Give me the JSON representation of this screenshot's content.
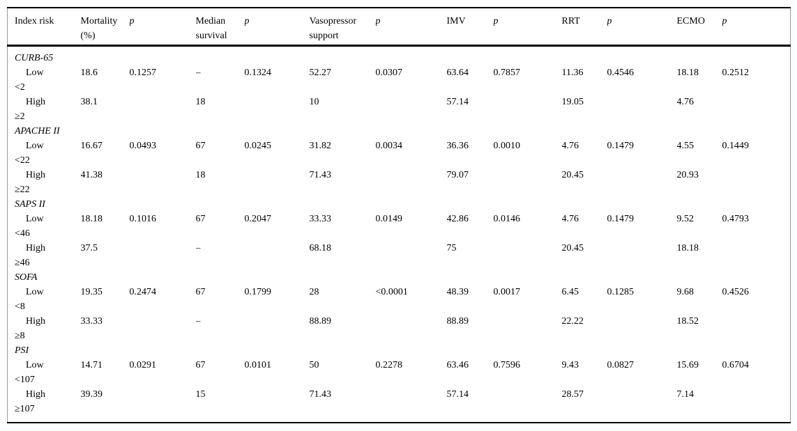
{
  "table": {
    "columns": [
      "Index risk",
      "Mortality (%)",
      "p",
      "Median survival",
      "p",
      "Vasopressor support",
      "p",
      "IMV",
      "p",
      "RRT",
      "p",
      "ECMO",
      "p"
    ],
    "groups": [
      {
        "name": "CURB-65",
        "rows": [
          {
            "label": "Low",
            "threshold": "<2",
            "values": [
              "18.6",
              "0.1257",
              "–",
              "0.1324",
              "52.27",
              "0.0307",
              "63.64",
              "0.7857",
              "11.36",
              "0.4546",
              "18.18",
              "0.2512"
            ]
          },
          {
            "label": "High",
            "threshold": "≥2",
            "values": [
              "38.1",
              "",
              "18",
              "",
              "10",
              "",
              "57.14",
              "",
              "19.05",
              "",
              "4.76",
              ""
            ]
          }
        ]
      },
      {
        "name": "APACHE II",
        "rows": [
          {
            "label": "Low",
            "threshold": "<22",
            "values": [
              "16.67",
              "0.0493",
              "67",
              "0.0245",
              "31.82",
              "0.0034",
              "36.36",
              "0.0010",
              "4.76",
              "0.1479",
              "4.55",
              "0.1449"
            ]
          },
          {
            "label": "High",
            "threshold": "≥22",
            "values": [
              "41.38",
              "",
              "18",
              "",
              "71.43",
              "",
              "79.07",
              "",
              "20.45",
              "",
              "20.93",
              ""
            ]
          }
        ]
      },
      {
        "name": "SAPS II",
        "rows": [
          {
            "label": "Low",
            "threshold": "<46",
            "values": [
              "18.18",
              "0.1016",
              "67",
              "0.2047",
              "33.33",
              "0.0149",
              "42.86",
              "0.0146",
              "4.76",
              "0.1479",
              "9.52",
              "0.4793"
            ]
          },
          {
            "label": "High",
            "threshold": "≥46",
            "values": [
              "37.5",
              "",
              "–",
              "",
              "68.18",
              "",
              "75",
              "",
              "20.45",
              "",
              "18.18",
              ""
            ]
          }
        ]
      },
      {
        "name": "SOFA",
        "rows": [
          {
            "label": "Low",
            "threshold": "<8",
            "values": [
              "19.35",
              "0.2474",
              "67",
              "0.1799",
              "28",
              "<0.0001",
              "48.39",
              "0.0017",
              "6.45",
              "0.1285",
              "9.68",
              "0.4526"
            ]
          },
          {
            "label": "High",
            "threshold": "≥8",
            "values": [
              "33.33",
              "",
              "–",
              "",
              "88.89",
              "",
              "88.89",
              "",
              "22.22",
              "",
              "18.52",
              ""
            ]
          }
        ]
      },
      {
        "name": "PSI",
        "rows": [
          {
            "label": "Low",
            "threshold": "<107",
            "values": [
              "14.71",
              "0.0291",
              "67",
              "0.0101",
              "50",
              "0.2278",
              "63.46",
              "0.7596",
              "9.43",
              "0.0827",
              "15.69",
              "0.6704"
            ]
          },
          {
            "label": "High",
            "threshold": "≥107",
            "values": [
              "39.39",
              "",
              "15",
              "",
              "71.43",
              "",
              "57.14",
              "",
              "28.57",
              "",
              "7.14",
              ""
            ]
          }
        ]
      }
    ]
  }
}
